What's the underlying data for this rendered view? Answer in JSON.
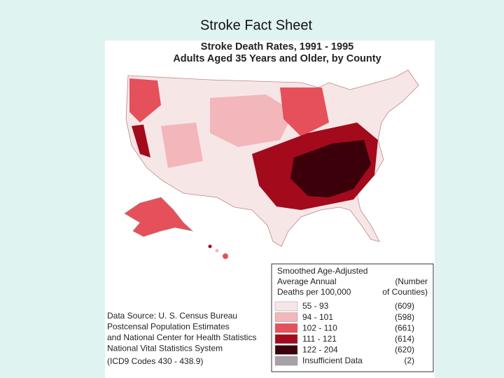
{
  "slide_title": "Stroke Fact Sheet",
  "map": {
    "title_lines": [
      "Stroke Death Rates, 1991 - 1995",
      "Adults Aged 35 Years and Older, by County"
    ],
    "legend": {
      "title_lines": [
        "Smoothed Age-Adjusted",
        "Average Annual",
        "Deaths per 100,000"
      ],
      "count_header_lines": [
        "(Number",
        "of Counties)"
      ],
      "items": [
        {
          "label": "55 - 93",
          "count": "(609)",
          "color": "#f7e6e6"
        },
        {
          "label": "94 - 101",
          "count": "(598)",
          "color": "#f2b6bb"
        },
        {
          "label": "102 - 110",
          "count": "(661)",
          "color": "#e5505a"
        },
        {
          "label": "111 - 121",
          "count": "(614)",
          "color": "#a30a1c"
        },
        {
          "label": "122 - 204",
          "count": "(620)",
          "color": "#3b0009"
        },
        {
          "label": "Insufficient Data",
          "count": "(2)",
          "color": "#a9a1a5"
        }
      ]
    },
    "source_lines": [
      "Data Source: U. S. Census Bureau",
      "Postcensal Population Estimates",
      "and National Center for Health Statistics",
      "National Vital Statistics System",
      "(ICD9 Codes 430 - 438.9)"
    ]
  }
}
